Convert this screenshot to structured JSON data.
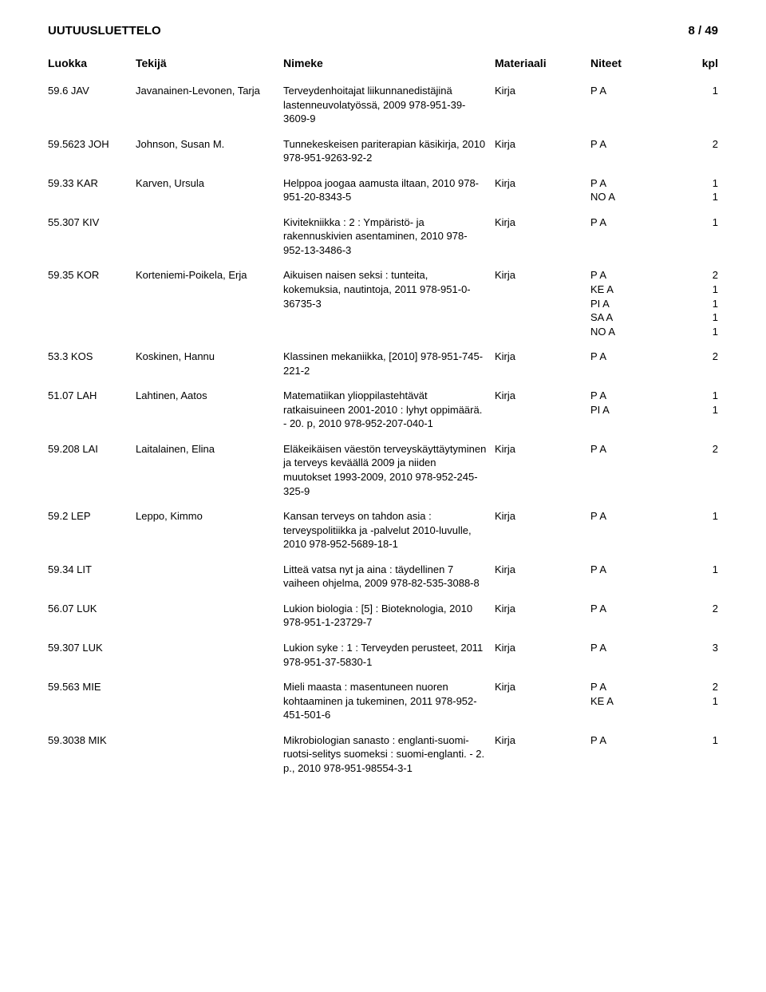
{
  "header": {
    "title": "UUTUUSLUETTELO",
    "page_label": "8 / 49"
  },
  "columns": {
    "c1": "Luokka",
    "c2": "Tekijä",
    "c3": "Nimeke",
    "c4": "Materiaali",
    "c5": "Niteet",
    "c6": "kpl"
  },
  "rows": [
    {
      "luokka": "59.6 JAV",
      "tekija": "Javanainen-Levonen, Tarja",
      "nimeke": "Terveydenhoitajat liikunnanedistäjinä lastenneuvolatyössä, 2009 978-951-39-3609-9",
      "materiaali": "Kirja",
      "niteet": [
        {
          "code": "P A",
          "kpl": "1"
        }
      ]
    },
    {
      "luokka": "59.5623 JOH",
      "tekija": "Johnson, Susan M.",
      "nimeke": "Tunnekeskeisen pariterapian käsikirja, 2010 978-951-9263-92-2",
      "materiaali": "Kirja",
      "niteet": [
        {
          "code": "P A",
          "kpl": "2"
        }
      ]
    },
    {
      "luokka": "59.33 KAR",
      "tekija": "Karven, Ursula",
      "nimeke": "Helppoa joogaa aamusta iltaan, 2010 978-951-20-8343-5",
      "materiaali": "Kirja",
      "niteet": [
        {
          "code": "P A",
          "kpl": "1"
        },
        {
          "code": "NO A",
          "kpl": "1"
        }
      ]
    },
    {
      "luokka": "55.307 KIV",
      "tekija": "",
      "nimeke": "Kivitekniikka : 2 : Ympäristö- ja rakennuskivien asentaminen, 2010 978-952-13-3486-3",
      "materiaali": "Kirja",
      "niteet": [
        {
          "code": "P A",
          "kpl": "1"
        }
      ]
    },
    {
      "luokka": "59.35 KOR",
      "tekija": "Korteniemi-Poikela, Erja",
      "nimeke": "Aikuisen naisen seksi : tunteita, kokemuksia, nautintoja, 2011 978-951-0-36735-3",
      "materiaali": "Kirja",
      "niteet": [
        {
          "code": "P A",
          "kpl": "2"
        },
        {
          "code": "KE A",
          "kpl": "1"
        },
        {
          "code": "PI A",
          "kpl": "1"
        },
        {
          "code": "SA A",
          "kpl": "1"
        },
        {
          "code": "NO A",
          "kpl": "1"
        }
      ]
    },
    {
      "luokka": "53.3 KOS",
      "tekija": "Koskinen, Hannu",
      "nimeke": "Klassinen mekaniikka, [2010] 978-951-745-221-2",
      "materiaali": "Kirja",
      "niteet": [
        {
          "code": "P A",
          "kpl": "2"
        }
      ]
    },
    {
      "luokka": "51.07 LAH",
      "tekija": "Lahtinen, Aatos",
      "nimeke": "Matematiikan ylioppilastehtävät ratkaisuineen 2001-2010 : lyhyt oppimäärä. - 20. p, 2010 978-952-207-040-1",
      "materiaali": "Kirja",
      "niteet": [
        {
          "code": "P A",
          "kpl": "1"
        },
        {
          "code": "PI A",
          "kpl": "1"
        }
      ]
    },
    {
      "luokka": "59.208 LAI",
      "tekija": "Laitalainen, Elina",
      "nimeke": "Eläkeikäisen väestön terveyskäyttäytyminen ja terveys keväällä 2009 ja niiden muutokset 1993-2009, 2010 978-952-245-325-9",
      "materiaali": "Kirja",
      "niteet": [
        {
          "code": "P A",
          "kpl": "2"
        }
      ]
    },
    {
      "luokka": "59.2 LEP",
      "tekija": "Leppo, Kimmo",
      "nimeke": "Kansan terveys on tahdon asia : terveyspolitiikka ja -palvelut 2010-luvulle, 2010 978-952-5689-18-1",
      "materiaali": "Kirja",
      "niteet": [
        {
          "code": "P A",
          "kpl": "1"
        }
      ]
    },
    {
      "luokka": "59.34 LIT",
      "tekija": "",
      "nimeke": "Litteä vatsa nyt ja aina : täydellinen 7 vaiheen ohjelma, 2009 978-82-535-3088-8",
      "materiaali": "Kirja",
      "niteet": [
        {
          "code": "P A",
          "kpl": "1"
        }
      ]
    },
    {
      "luokka": "56.07 LUK",
      "tekija": "",
      "nimeke": "Lukion biologia : [5] : Bioteknologia, 2010 978-951-1-23729-7",
      "materiaali": "Kirja",
      "niteet": [
        {
          "code": "P A",
          "kpl": "2"
        }
      ]
    },
    {
      "luokka": "59.307 LUK",
      "tekija": "",
      "nimeke": "Lukion syke : 1 : Terveyden perusteet, 2011 978-951-37-5830-1",
      "materiaali": "Kirja",
      "niteet": [
        {
          "code": "P A",
          "kpl": "3"
        }
      ]
    },
    {
      "luokka": "59.563 MIE",
      "tekija": "",
      "nimeke": "Mieli maasta : masentuneen nuoren kohtaaminen ja tukeminen, 2011 978-952-451-501-6",
      "materiaali": "Kirja",
      "niteet": [
        {
          "code": "P A",
          "kpl": "2"
        },
        {
          "code": "KE A",
          "kpl": "1"
        }
      ]
    },
    {
      "luokka": "59.3038 MIK",
      "tekija": "",
      "nimeke": "Mikrobiologian sanasto : englanti-suomi-ruotsi-selitys suomeksi : suomi-englanti. - 2. p., 2010 978-951-98554-3-1",
      "materiaali": "Kirja",
      "niteet": [
        {
          "code": "P A",
          "kpl": "1"
        }
      ]
    }
  ]
}
